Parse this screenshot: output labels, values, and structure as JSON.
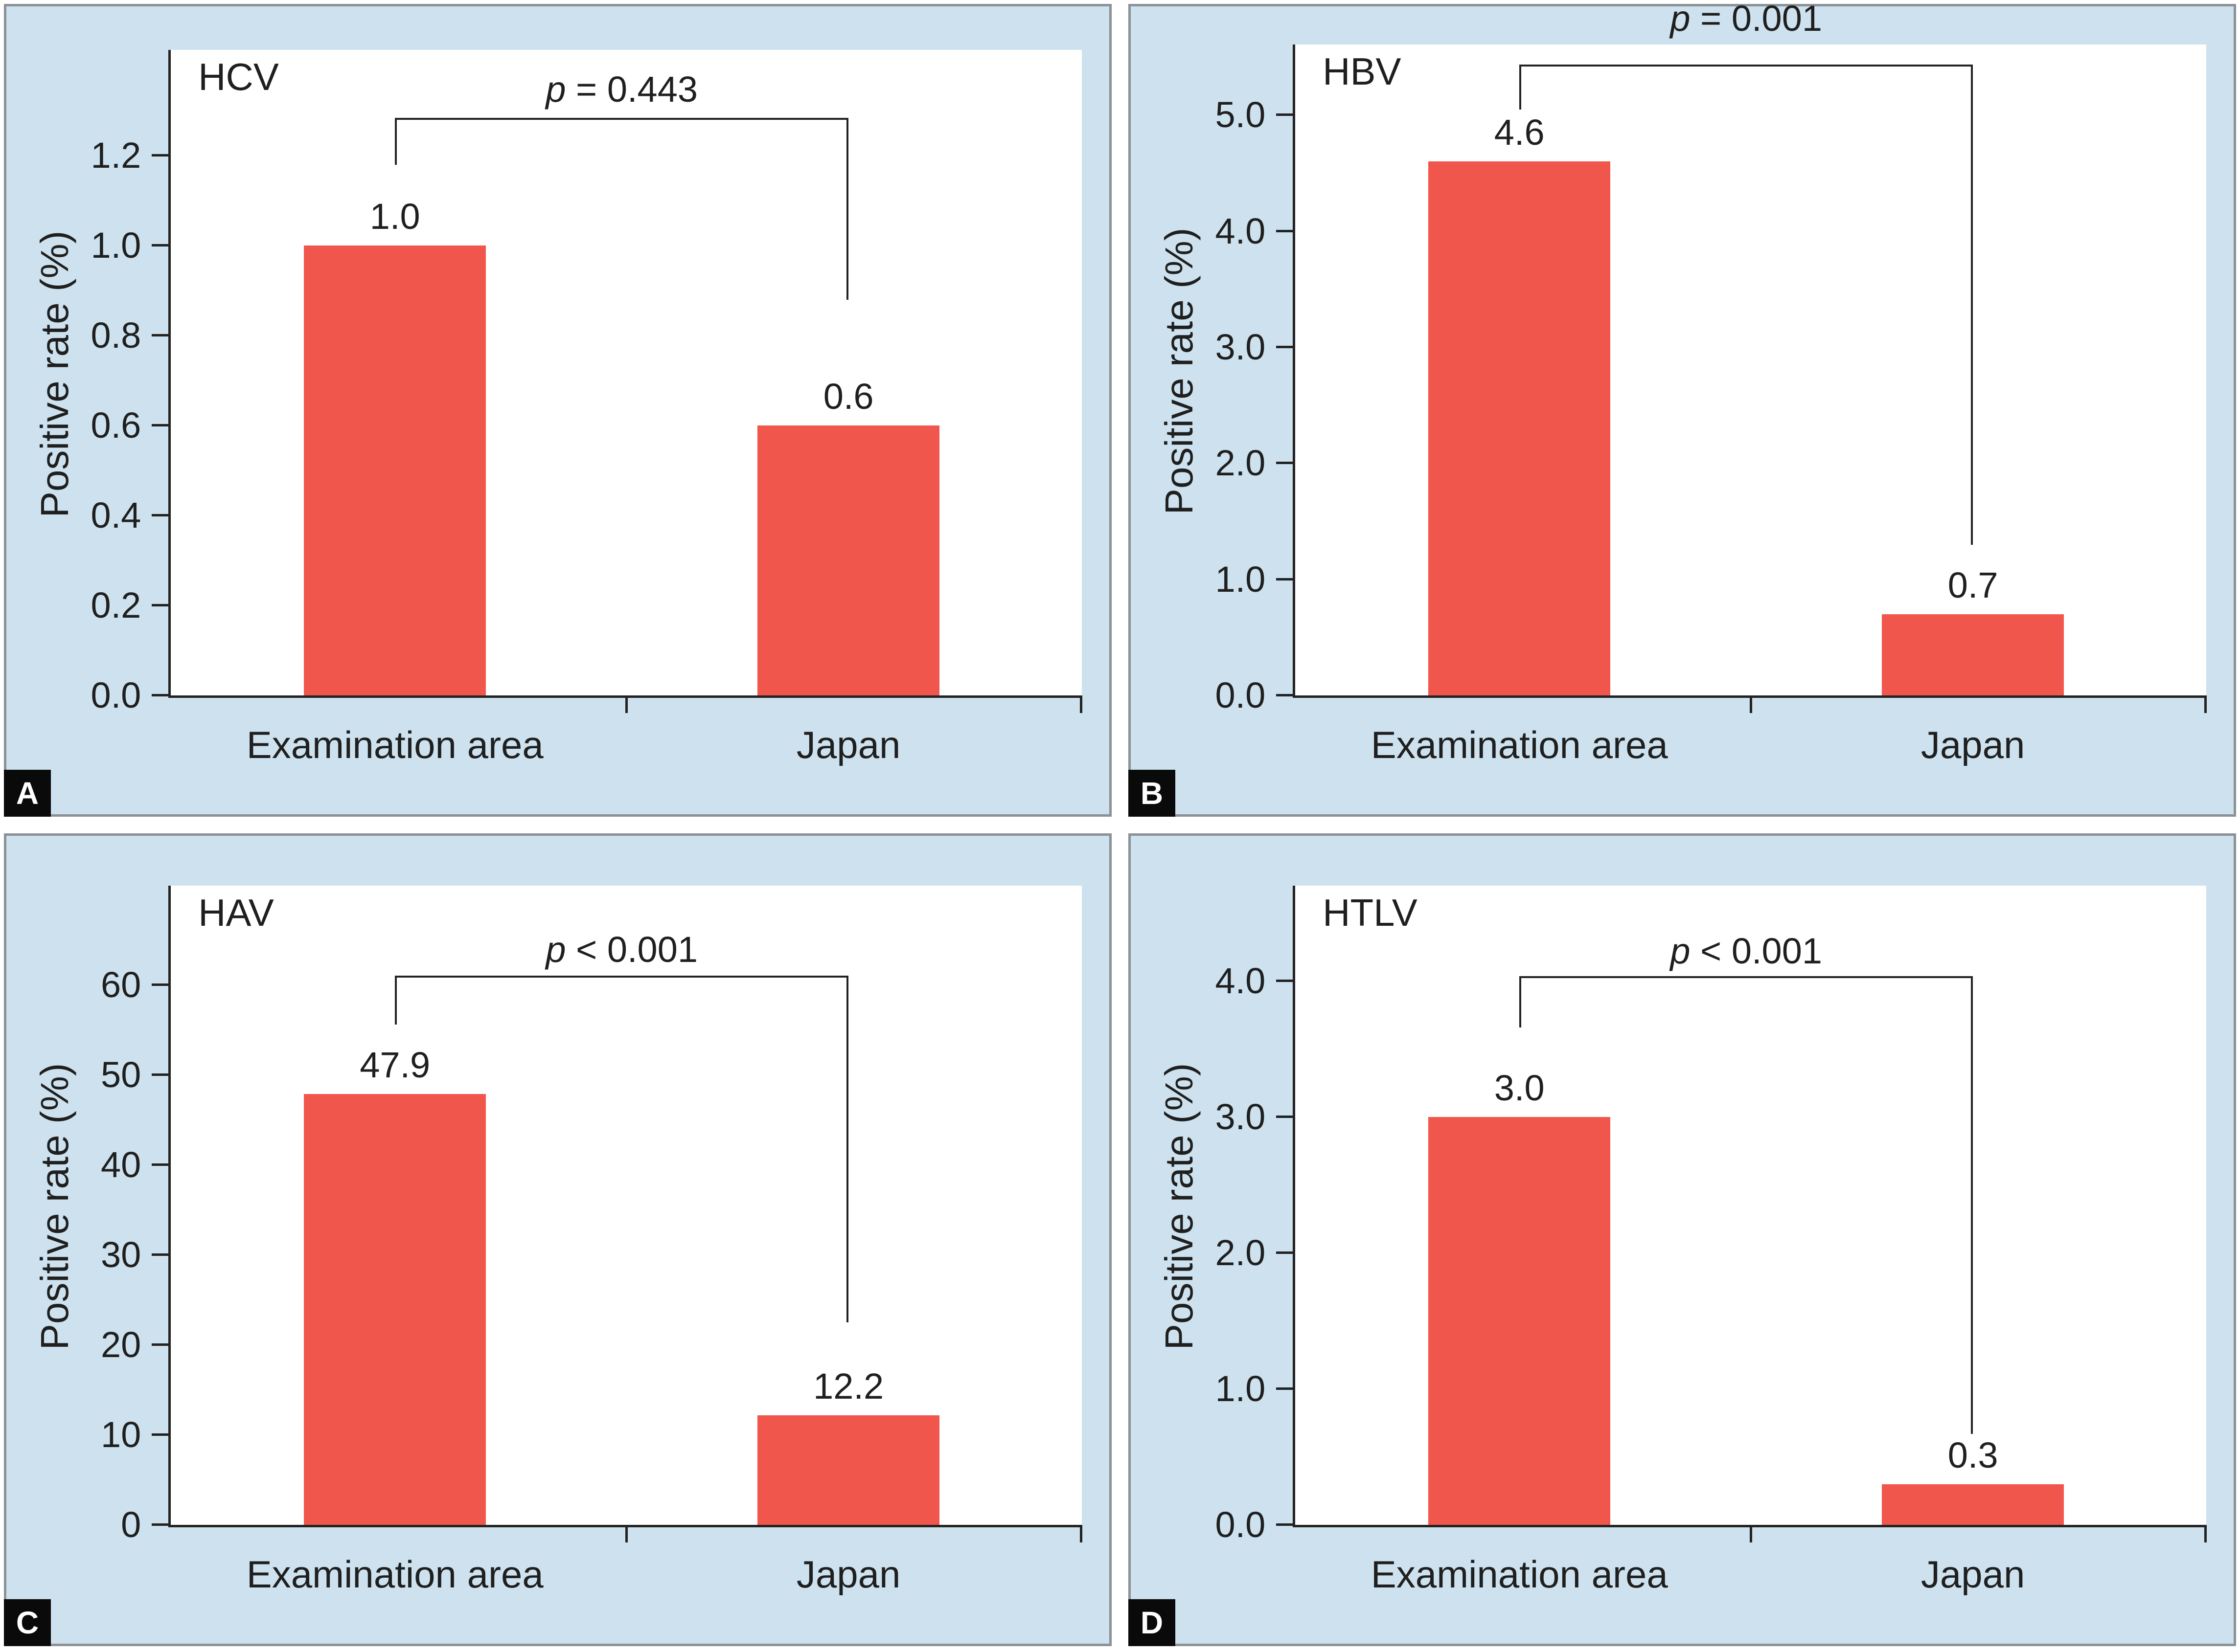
{
  "figure": {
    "panel_background": "#cde2ee",
    "panel_border_color": "#8b9196",
    "bar_color": "#f1564c",
    "axis_color": "#222222",
    "text_color": "#1f1f1f",
    "badge_background": "#0a0a0a",
    "badge_text_color": "#ffffff"
  },
  "chart_data": [
    {
      "type": "bar",
      "panel_letter": "A",
      "title": "HCV",
      "ylabel": "Positive rate (%)",
      "xlabel": "",
      "categories": [
        "Examination area",
        "Japan"
      ],
      "values": [
        1.0,
        0.6
      ],
      "value_labels": [
        "1.0",
        "0.6"
      ],
      "p_label": "p = 0.443",
      "yticks": [
        0.0,
        0.2,
        0.4,
        0.6,
        0.8,
        1.0,
        1.2
      ],
      "ytick_labels": [
        "0.0",
        "0.2",
        "0.4",
        "0.6",
        "0.8",
        "1.0",
        "1.2"
      ],
      "ylim": [
        0,
        1.435
      ],
      "grid": false,
      "legend": "none",
      "bracket": {
        "top": 1.28,
        "left_end": 1.18,
        "right_end": 0.88,
        "p_bottom": 1.305
      },
      "plot_top_pct": 5.4
    },
    {
      "type": "bar",
      "panel_letter": "B",
      "title": "HBV",
      "ylabel": "Positive rate (%)",
      "xlabel": "",
      "categories": [
        "Examination area",
        "Japan"
      ],
      "values": [
        4.6,
        0.7
      ],
      "value_labels": [
        "4.6",
        "0.7"
      ],
      "p_label": "p = 0.001",
      "yticks": [
        0.0,
        1.0,
        2.0,
        3.0,
        4.0,
        5.0
      ],
      "ytick_labels": [
        "0.0",
        "1.0",
        "2.0",
        "3.0",
        "4.0",
        "5.0"
      ],
      "ylim": [
        0,
        5.61
      ],
      "grid": false,
      "legend": "none",
      "bracket": {
        "top": 5.42,
        "left_end": 5.05,
        "right_end": 1.3,
        "p_bottom": 5.67
      },
      "plot_top_pct": 4.7
    },
    {
      "type": "bar",
      "panel_letter": "C",
      "title": "HAV",
      "ylabel": "Positive rate (%)",
      "xlabel": "",
      "categories": [
        "Examination area",
        "Japan"
      ],
      "values": [
        47.9,
        12.2
      ],
      "value_labels": [
        "47.9",
        "12.2"
      ],
      "p_label": "p < 0.001",
      "yticks": [
        0,
        10,
        20,
        30,
        40,
        50,
        60
      ],
      "ytick_labels": [
        "0",
        "10",
        "20",
        "30",
        "40",
        "50",
        "60"
      ],
      "ylim": [
        0,
        71
      ],
      "grid": false,
      "legend": "none",
      "bracket": {
        "top": 60.8,
        "left_end": 55.6,
        "right_end": 22.5,
        "p_bottom": 61.8
      },
      "plot_top_pct": 6.2
    },
    {
      "type": "bar",
      "panel_letter": "D",
      "title": "HTLV",
      "ylabel": "Positive rate (%)",
      "xlabel": "",
      "categories": [
        "Examination area",
        "Japan"
      ],
      "values": [
        3.0,
        0.3
      ],
      "value_labels": [
        "3.0",
        "0.3"
      ],
      "p_label": "p < 0.001",
      "yticks": [
        0.0,
        1.0,
        2.0,
        3.0,
        4.0
      ],
      "ytick_labels": [
        "0.0",
        "1.0",
        "2.0",
        "3.0",
        "4.0"
      ],
      "ylim": [
        0,
        4.7
      ],
      "grid": false,
      "legend": "none",
      "bracket": {
        "top": 4.02,
        "left_end": 3.66,
        "right_end": 0.67,
        "p_bottom": 4.08
      },
      "plot_top_pct": 6.2
    }
  ]
}
